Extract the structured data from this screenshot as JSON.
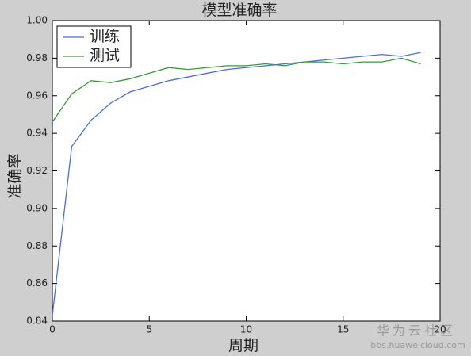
{
  "chart_data": {
    "type": "line",
    "title": "模型准确率",
    "x_label": "周期",
    "y_label": "准确率",
    "x": [
      0,
      1,
      2,
      3,
      4,
      5,
      6,
      7,
      8,
      9,
      10,
      11,
      12,
      13,
      14,
      15,
      16,
      17,
      18,
      19
    ],
    "series": [
      {
        "name": "训练",
        "color": "#4a6ee0",
        "values": [
          0.843,
          0.933,
          0.947,
          0.956,
          0.962,
          0.965,
          0.968,
          0.97,
          0.972,
          0.974,
          0.975,
          0.976,
          0.977,
          0.978,
          0.979,
          0.98,
          0.981,
          0.982,
          0.981,
          0.983
        ]
      },
      {
        "name": "测试",
        "color": "#3a9a3a",
        "values": [
          0.946,
          0.961,
          0.968,
          0.967,
          0.969,
          0.972,
          0.975,
          0.974,
          0.975,
          0.976,
          0.976,
          0.977,
          0.976,
          0.978,
          0.978,
          0.977,
          0.978,
          0.978,
          0.98,
          0.977
        ]
      }
    ],
    "xlim": [
      0,
      20
    ],
    "xticks": [
      0,
      5,
      10,
      15,
      20
    ],
    "ylim": [
      0.84,
      1
    ],
    "yticks": [
      0.84,
      0.86,
      0.88,
      {
        "value": 0.9,
        "label": "0.90"
      },
      0.92,
      0.94,
      0.96,
      0.98,
      {
        "value": 1,
        "label": "1.00"
      }
    ],
    "legend": "upper-left"
  },
  "watermark": {
    "brand": "华为云社区",
    "url": "bbs.huaweicloud.com"
  }
}
